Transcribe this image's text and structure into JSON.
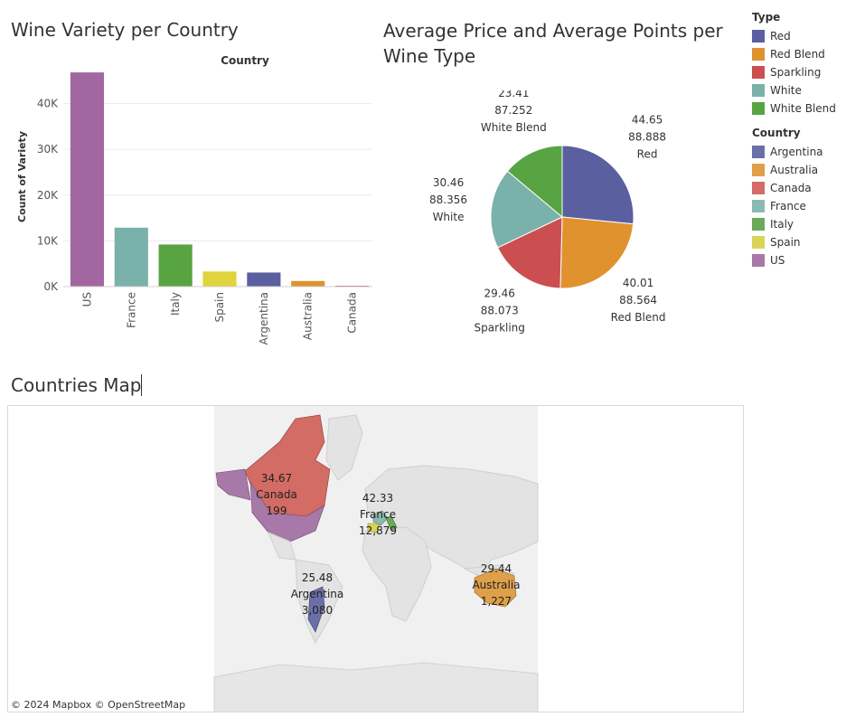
{
  "bar_title": "Wine Variety per Country",
  "pie_title": "Average Price and Average Points per Wine Type",
  "map_title": "Countries Map",
  "attribution": "© 2024 Mapbox  © OpenStreetMap",
  "legend": {
    "type_header": "Type",
    "types": [
      {
        "label": "Red",
        "color": "#5a5fa0"
      },
      {
        "label": "Red Blend",
        "color": "#e0922f"
      },
      {
        "label": "Sparkling",
        "color": "#cb4f50"
      },
      {
        "label": "White",
        "color": "#7ab1aa"
      },
      {
        "label": "White Blend",
        "color": "#58a443"
      }
    ],
    "country_header": "Country",
    "countries": [
      {
        "label": "Argentina",
        "color": "#6b6fa8"
      },
      {
        "label": "Australia",
        "color": "#dfa04a"
      },
      {
        "label": "Canada",
        "color": "#d26c64"
      },
      {
        "label": "France",
        "color": "#8bbab2"
      },
      {
        "label": "Italy",
        "color": "#6aaa5a"
      },
      {
        "label": "Spain",
        "color": "#d9d456"
      },
      {
        "label": "US",
        "color": "#a878a8"
      }
    ]
  },
  "chart_data": [
    {
      "type": "bar",
      "title": "Wine Variety per Country",
      "column_header": "Country",
      "ylabel": "Count of Variety",
      "categories": [
        "US",
        "France",
        "Italy",
        "Spain",
        "Argentina",
        "Australia",
        "Canada"
      ],
      "values": [
        46800,
        12879,
        9200,
        3300,
        3080,
        1227,
        199
      ],
      "colors": [
        "#a267a0",
        "#7ab1aa",
        "#58a443",
        "#dfd43c",
        "#5a5fa0",
        "#e0922f",
        "#cb4f50"
      ],
      "yticks": [
        0,
        10000,
        20000,
        30000,
        40000
      ],
      "ytick_labels": [
        "0K",
        "10K",
        "20K",
        "30K",
        "40K"
      ],
      "ylim": [
        0,
        48000
      ]
    },
    {
      "type": "pie",
      "title": "Average Price and Average Points per Wine Type",
      "slices": [
        {
          "label": "Red",
          "price": "44.65",
          "points": "88.888",
          "share": 25.6,
          "color": "#5a5fa0"
        },
        {
          "label": "Red Blend",
          "price": "40.01",
          "points": "88.564",
          "share": 23.0,
          "color": "#e0922f"
        },
        {
          "label": "Sparkling",
          "price": "29.46",
          "points": "88.073",
          "share": 16.9,
          "color": "#cb4f50"
        },
        {
          "label": "White",
          "price": "30.46",
          "points": "88.356",
          "share": 17.5,
          "color": "#7ab1aa"
        },
        {
          "label": "White Blend",
          "price": "23.41",
          "points": "87.252",
          "share": 13.4,
          "color": "#58a443"
        }
      ]
    },
    {
      "type": "map",
      "title": "Countries Map",
      "marks": [
        {
          "country": "Canada",
          "price": "34.67",
          "count": "199",
          "color": "#d26c64"
        },
        {
          "country": "France",
          "price": "42.33",
          "count": "12,879",
          "color": "#8bbab2"
        },
        {
          "country": "Argentina",
          "price": "25.48",
          "count": "3,080",
          "color": "#6b6fa8"
        },
        {
          "country": "Australia",
          "price": "29.44",
          "count": "1,227",
          "color": "#dfa04a"
        }
      ]
    }
  ]
}
